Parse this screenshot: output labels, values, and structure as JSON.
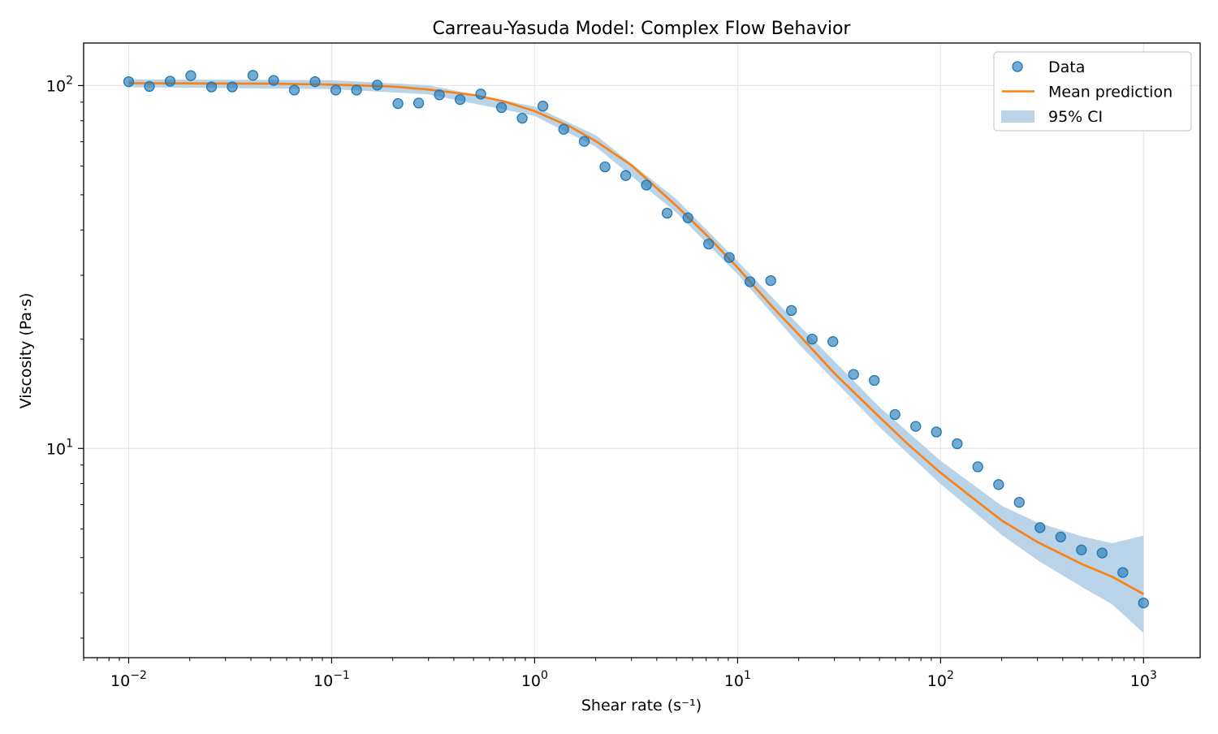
{
  "chart_data": {
    "type": "scatter",
    "title": "Carreau-Yasuda Model: Complex Flow Behavior",
    "xlabel": "Shear rate (s⁻¹)",
    "ylabel": "Viscosity (Pa·s)",
    "xscale": "log",
    "yscale": "log",
    "xlim": [
      0.006,
      1900
    ],
    "ylim": [
      2.65,
      131
    ],
    "grid": true,
    "legend_position": "top-right",
    "x_ticks": [
      {
        "value": 0.01,
        "base": "10",
        "exp": "−2"
      },
      {
        "value": 0.1,
        "base": "10",
        "exp": "−1"
      },
      {
        "value": 1,
        "base": "10",
        "exp": "0"
      },
      {
        "value": 10,
        "base": "10",
        "exp": "1"
      },
      {
        "value": 100,
        "base": "10",
        "exp": "2"
      },
      {
        "value": 1000,
        "base": "10",
        "exp": "3"
      }
    ],
    "y_ticks": [
      {
        "value": 10,
        "base": "10",
        "exp": "1"
      },
      {
        "value": 100,
        "base": "10",
        "exp": "2"
      }
    ],
    "colors": {
      "data": "#1f77b4",
      "mean": "#ff7f0e",
      "ci": "#b9d3e8",
      "grid": "#e6e6e6"
    },
    "series": [
      {
        "name": "Data",
        "kind": "scatter",
        "x": [
          0.01,
          0.01265,
          0.016,
          0.02024,
          0.0256,
          0.03237,
          0.04095,
          0.05179,
          0.06551,
          0.08286,
          0.1048,
          0.1326,
          0.1677,
          0.2121,
          0.2683,
          0.3393,
          0.4292,
          0.5429,
          0.6866,
          0.8685,
          1.099,
          1.39,
          1.758,
          2.223,
          2.812,
          3.556,
          4.498,
          5.69,
          7.197,
          9.103,
          11.51,
          14.56,
          18.42,
          23.3,
          29.47,
          37.28,
          47.15,
          59.64,
          75.43,
          95.41,
          120.7,
          152.6,
          193.1,
          244.2,
          308.9,
          390.7,
          494.2,
          625.1,
          790.6,
          1000
        ],
        "y": [
          102.5,
          99.5,
          102.8,
          106.5,
          99.2,
          99.2,
          106.7,
          103.3,
          97.2,
          102.5,
          97.2,
          97.2,
          100.3,
          89.2,
          89.5,
          94.3,
          91.5,
          94.8,
          87.0,
          81.3,
          87.8,
          75.8,
          70.2,
          59.7,
          56.5,
          53.2,
          44.5,
          43.2,
          36.6,
          33.6,
          28.8,
          29.0,
          24.0,
          20.0,
          19.7,
          16.0,
          15.4,
          12.4,
          11.5,
          11.1,
          10.3,
          8.9,
          7.95,
          7.1,
          6.05,
          5.7,
          5.25,
          5.15,
          4.55,
          3.75
        ]
      },
      {
        "name": "Mean prediction",
        "kind": "line",
        "x": [
          0.01,
          0.02,
          0.05,
          0.1,
          0.2,
          0.3,
          0.5,
          0.7,
          1,
          1.5,
          2,
          3,
          5,
          7,
          10,
          15,
          20,
          30,
          50,
          70,
          100,
          150,
          200,
          300,
          500,
          700,
          1000
        ],
        "y": [
          101.5,
          101.4,
          101.2,
          100.6,
          99.4,
          97.5,
          94.2,
          90.6,
          85.0,
          77.0,
          70.3,
          60.3,
          46.6,
          38.8,
          31.5,
          24.4,
          20.6,
          16.1,
          12.2,
          10.2,
          8.57,
          7.17,
          6.33,
          5.52,
          4.79,
          4.43,
          3.97
        ]
      },
      {
        "name": "95% CI",
        "kind": "band",
        "x": [
          0.01,
          0.1,
          0.3,
          1,
          2,
          5,
          10,
          20,
          50,
          100,
          200,
          300,
          500,
          700,
          1000
        ],
        "lower": [
          99.0,
          97.8,
          94.6,
          82.5,
          67.8,
          44.6,
          30.2,
          19.4,
          11.45,
          7.98,
          5.78,
          4.92,
          4.14,
          3.72,
          3.1
        ],
        "upper": [
          104.0,
          103.5,
          100.2,
          87.5,
          73.0,
          48.6,
          32.8,
          21.9,
          13.0,
          9.25,
          6.95,
          6.25,
          5.72,
          5.48,
          5.75
        ]
      }
    ]
  }
}
